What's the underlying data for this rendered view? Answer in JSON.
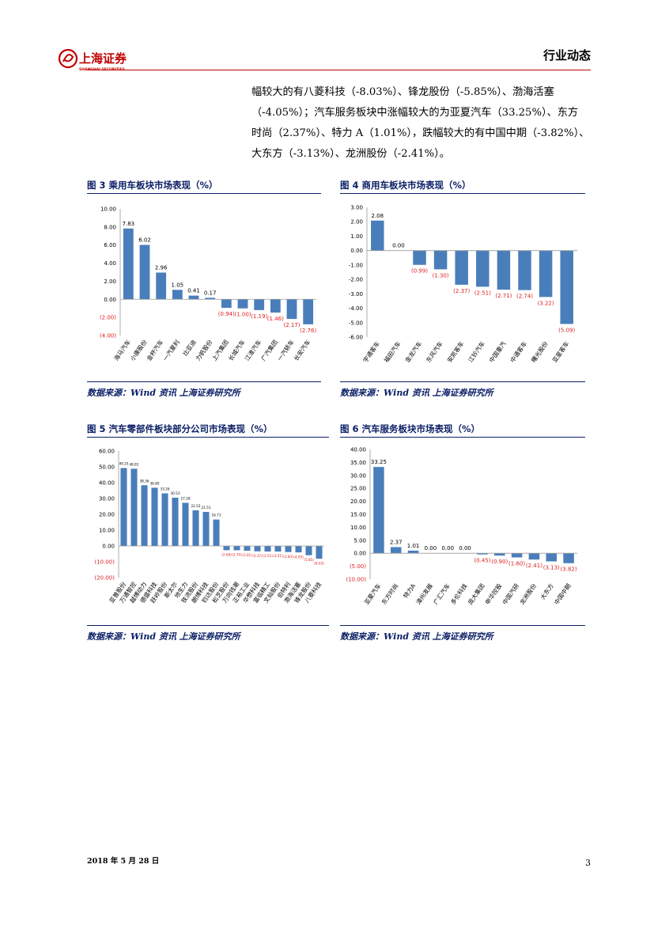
{
  "header": {
    "logo_text": "上海证券",
    "logo_subtext": "SHANGHAI SECURITIES",
    "doc_type": "行业动态"
  },
  "body": {
    "lines": [
      "幅较大的有八菱科技（-8.03%）、锋龙股份（-5.85%）、渤海活塞",
      "（-4.05%）；汽车服务板块中涨幅较大的为亚夏汽车（33.25%）、东方",
      "时尚（2.37%）、特力 A（1.01%），跌幅较大的有中国中期（-3.82%）、",
      "大东方（-3.13%）、龙洲股份（-2.41%）。"
    ]
  },
  "figures": [
    {
      "title": "图 3 乘用车板块市场表现（%）",
      "source": "数据来源：Wind 资讯 上海证券研究所",
      "chart_data": {
        "type": "bar",
        "categories": [
          "海马汽车",
          "小康股份",
          "金杯汽车",
          "一汽夏利",
          "比亚迪",
          "力帆股份",
          "上汽集团",
          "长城汽车",
          "江淮汽车",
          "广汽集团",
          "一汽轿车",
          "长安汽车"
        ],
        "values": [
          7.83,
          6.02,
          2.96,
          1.05,
          0.41,
          0.17,
          -0.94,
          -1.0,
          -1.19,
          -1.46,
          -2.17,
          -2.76
        ],
        "value_labels": [
          "7.83",
          "6.02",
          "2.96",
          "1.05",
          "0.41",
          "0.17",
          "(0.94)",
          "(1.00)",
          "(1.19)",
          "(1.46)",
          "(2.17)",
          "(2.76)"
        ],
        "yticks": [
          "10.00",
          "8.00",
          "6.00",
          "4.00",
          "2.00",
          "0.00",
          "(2.00)",
          "(4.00)"
        ],
        "ylim": [
          -4,
          10
        ],
        "bar_color": "#4a7ebb",
        "neg_label_color": "#e02020"
      }
    },
    {
      "title": "图 4 商用车板块市场表现（%）",
      "source": "数据来源：Wind 资讯 上海证券研究所",
      "chart_data": {
        "type": "bar",
        "categories": [
          "宇通客车",
          "福田汽车",
          "金龙汽车",
          "东风汽车",
          "安凯客车",
          "江铃汽车",
          "中国重汽",
          "中通客车",
          "曙光股份",
          "亚星客车"
        ],
        "values": [
          2.08,
          0.0,
          -0.99,
          -1.3,
          -2.37,
          -2.51,
          -2.71,
          -2.74,
          -3.22,
          -5.09
        ],
        "value_labels": [
          "2.08",
          "0.00",
          "(0.99)",
          "(1.30)",
          "(2.37)",
          "(2.51)",
          "(2.71)",
          "(2.74)",
          "(3.22)",
          "(5.09)"
        ],
        "yticks": [
          "3.00",
          "2.00",
          "1.00",
          "0.00",
          "-1.00",
          "-2.00",
          "-3.00",
          "-4.00",
          "-5.00",
          "-6.00"
        ],
        "ylim": [
          -6,
          3
        ],
        "bar_color": "#4a7ebb",
        "neg_label_color": "#e02020"
      }
    },
    {
      "title": "图 5 汽车零部件板块部分公司市场表现（%）",
      "source": "数据来源：Wind 资讯 上海证券研究所",
      "chart_data": {
        "type": "bar",
        "categories": [
          "亚普股份",
          "万通智控",
          "越博动力",
          "德盛科技",
          "跃岭股份",
          "斯太尔",
          "地生力",
          "铁流股份",
          "朗博科技",
          "钧达股份",
          "松芝股份",
          "万向钱潮",
          "正裕工业",
          "华懋科技",
          "富临精工",
          "文灿股份",
          "伯特利",
          "渤海活塞",
          "锋龙股份",
          "八菱科技"
        ],
        "values": [
          49.25,
          48.81,
          38.36,
          36.8,
          33.26,
          30.53,
          27.28,
          22.52,
          21.51,
          16.71,
          -2.68,
          -2.7,
          -3.01,
          -3.37,
          -3.51,
          -3.51,
          -3.83,
          -4.05,
          -5.85,
          -8.03
        ],
        "value_labels": [
          "49.25",
          "48.81",
          "38.36",
          "36.80",
          "33.26",
          "30.53",
          "27.28",
          "22.52",
          "21.51",
          "16.71",
          "(2.68)",
          "(2.70)",
          "(3.01)",
          "(3.37)",
          "(3.51)",
          "(3.51)",
          "(3.83)",
          "(4.05)",
          "(5.85)",
          "(8.03)"
        ],
        "yticks": [
          "60.00",
          "50.00",
          "40.00",
          "30.00",
          "20.00",
          "10.00",
          "0.00",
          "(10.00)",
          "(20.00)"
        ],
        "ylim": [
          -20,
          60
        ],
        "bar_color": "#4a7ebb",
        "neg_label_color": "#e02020"
      }
    },
    {
      "title": "图 6 汽车服务板块市场表现（%）",
      "source": "数据来源：Wind 资讯 上海证券研究所",
      "chart_data": {
        "type": "bar",
        "categories": [
          "亚夏汽车",
          "东方时尚",
          "特力A",
          "漳州发展",
          "广汇汽车",
          "多伦科技",
          "庞大集团",
          "申华控股",
          "中国汽研",
          "龙洲股份",
          "大东方",
          "中国中期"
        ],
        "values": [
          33.25,
          2.37,
          1.01,
          0.0,
          0.0,
          0.0,
          -0.45,
          -0.9,
          -1.6,
          -2.41,
          -3.13,
          -3.82
        ],
        "value_labels": [
          "33.25",
          "2.37",
          "1.01",
          "0.00",
          "0.00",
          "0.00",
          "(0.45)",
          "(0.90)",
          "(1.60)",
          "(2.41)",
          "(3.13)",
          "(3.82)"
        ],
        "yticks": [
          "40.00",
          "35.00",
          "30.00",
          "25.00",
          "20.00",
          "15.00",
          "10.00",
          "5.00",
          "0.00",
          "(5.00)",
          "(10.00)"
        ],
        "ylim": [
          -10,
          40
        ],
        "bar_color": "#4a7ebb",
        "neg_label_color": "#e02020"
      }
    }
  ],
  "footer": {
    "date": "2018 年 5 月 28 日",
    "page": "3"
  }
}
